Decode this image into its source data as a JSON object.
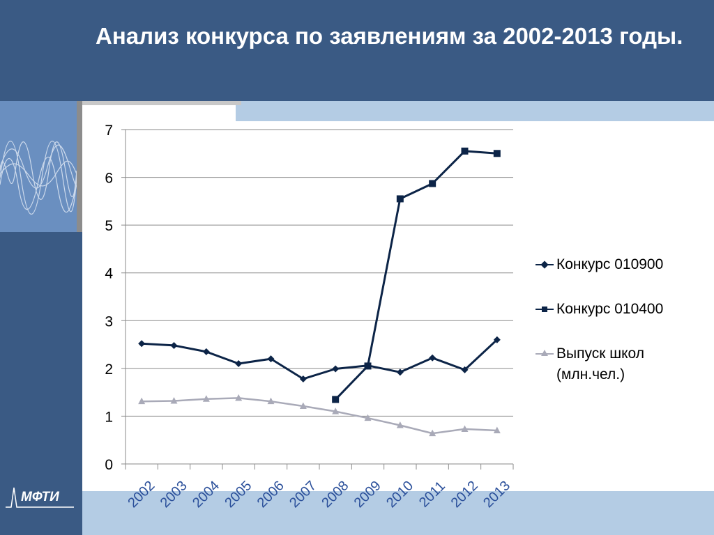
{
  "slide": {
    "title": "Анализ конкурса по заявлениям за 2002-2013 годы.",
    "logo_text": "МФТИ"
  },
  "colors": {
    "header": "#3a5a84",
    "accent_light": "#b4cce4",
    "series_dark": "#0c2447",
    "series_gray": "#a9aab8"
  },
  "chart_data": {
    "type": "line",
    "categories": [
      "2002",
      "2003",
      "2004",
      "2005",
      "2006",
      "2007",
      "2008",
      "2009",
      "2010",
      "2011",
      "2012",
      "2013"
    ],
    "ylim": [
      0,
      7
    ],
    "yticks": [
      "0",
      "1",
      "2",
      "3",
      "4",
      "5",
      "6",
      "7"
    ],
    "grid": true,
    "legend_position": "right",
    "series": [
      {
        "name": "Конкурс 010900",
        "marker": "diamond",
        "color": "#0c2447",
        "values": [
          2.52,
          2.48,
          2.35,
          2.1,
          2.2,
          1.78,
          1.99,
          2.06,
          1.92,
          2.22,
          1.97,
          2.6
        ]
      },
      {
        "name": "Конкурс 010400",
        "marker": "square",
        "color": "#0c2447",
        "values": [
          null,
          null,
          null,
          null,
          null,
          null,
          1.35,
          2.05,
          5.55,
          5.87,
          6.55,
          6.5
        ]
      },
      {
        "name": "Выпуск школ (млн.чел.)",
        "marker": "triangle",
        "color": "#a9aab8",
        "values": [
          1.31,
          1.32,
          1.36,
          1.38,
          1.31,
          1.21,
          1.1,
          0.96,
          0.81,
          0.64,
          0.73,
          0.7
        ]
      }
    ]
  }
}
